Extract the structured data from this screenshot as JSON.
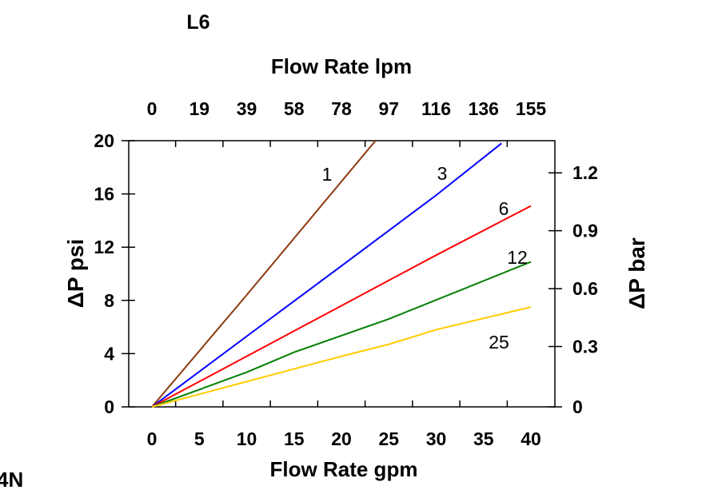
{
  "chart_data": {
    "type": "line",
    "title": "L6",
    "corner_label": "4N",
    "xlabel": "Flow Rate gpm",
    "x2label": "Flow Rate lpm",
    "ylabel": "ΔP psi",
    "y2label": "ΔP bar",
    "xlim": [
      -2.5,
      42.5
    ],
    "ylim": [
      0,
      20
    ],
    "x_ticks": [
      "0",
      "5",
      "10",
      "15",
      "20",
      "25",
      "30",
      "35",
      "40"
    ],
    "x2_ticks": [
      "0",
      "19",
      "39",
      "58",
      "78",
      "97",
      "116",
      "136",
      "155"
    ],
    "y_ticks": [
      "0",
      "4",
      "8",
      "12",
      "16",
      "20"
    ],
    "y2_ticks": [
      "0",
      "0.3",
      "0.6",
      "0.9",
      "1.2"
    ],
    "grid": false,
    "series": [
      {
        "name": "1",
        "color": "#8b3a0f",
        "x": [
          0,
          10,
          23.6
        ],
        "y": [
          0,
          8.4,
          20
        ]
      },
      {
        "name": "3",
        "color": "#0000ff",
        "x": [
          0,
          10,
          20.3,
          30,
          36.9
        ],
        "y": [
          0,
          5.3,
          10.75,
          15.9,
          19.8
        ]
      },
      {
        "name": "6",
        "color": "#ff0000",
        "x": [
          0,
          10,
          20,
          30,
          40
        ],
        "y": [
          0,
          3.8,
          7.6,
          11.4,
          15.1
        ]
      },
      {
        "name": "12",
        "color": "#008000",
        "x": [
          0,
          10,
          15,
          25,
          40
        ],
        "y": [
          0,
          2.6,
          4.1,
          6.6,
          10.9
        ]
      },
      {
        "name": "25",
        "color": "#ffcc00",
        "x": [
          0,
          10,
          20,
          25,
          30,
          40
        ],
        "y": [
          0,
          1.9,
          3.8,
          4.7,
          5.8,
          7.5
        ]
      }
    ]
  }
}
